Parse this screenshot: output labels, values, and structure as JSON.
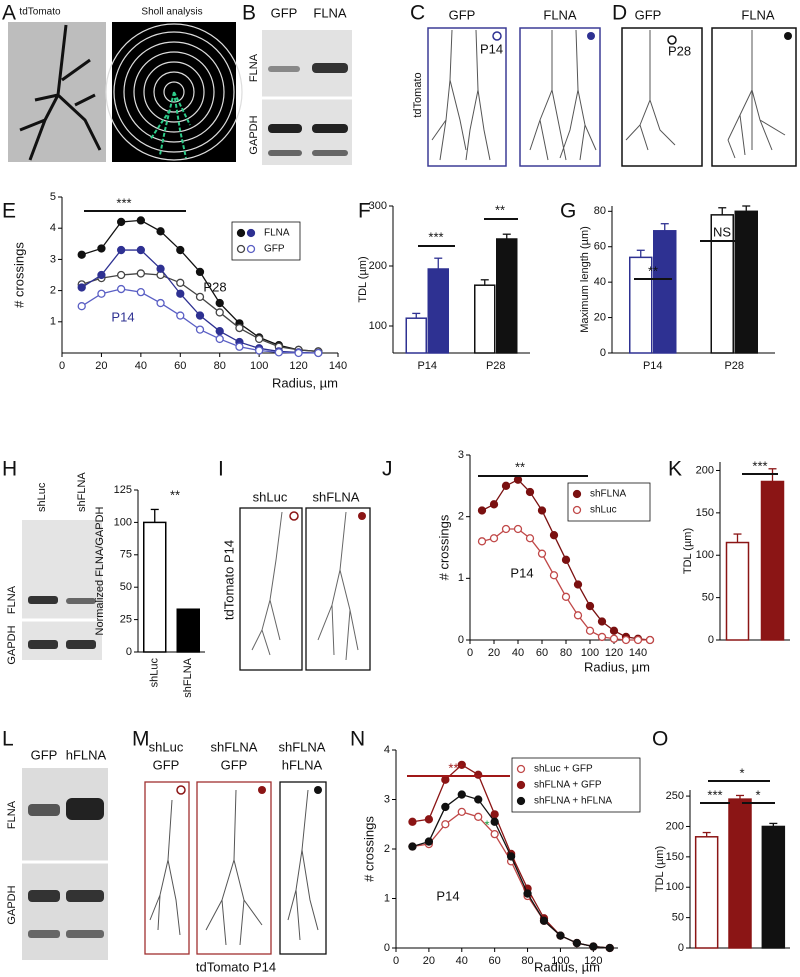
{
  "panels": {
    "A": {
      "label": "A",
      "titles": [
        "tdTomato",
        "Sholl analysis"
      ]
    },
    "B": {
      "label": "B",
      "columns": [
        "GFP",
        "FLNA"
      ],
      "rows": [
        "FLNA",
        "GAPDH"
      ]
    },
    "C": {
      "label": "C",
      "columns": [
        "GFP",
        "FLNA"
      ],
      "age": "P14",
      "side": "tdTomato"
    },
    "D": {
      "label": "D",
      "columns": [
        "GFP",
        "FLNA"
      ],
      "age": "P28"
    },
    "H": {
      "columns": [
        "shLuc",
        "shFLNA"
      ],
      "rows": [
        "FLNA",
        "GAPDH"
      ]
    },
    "I": {
      "label": "I",
      "columns": [
        "shLuc",
        "shFLNA"
      ],
      "side": "tdTomato P14"
    },
    "L": {
      "label": "L",
      "columns": [
        "GFP",
        "hFLNA"
      ],
      "rows": [
        "FLNA",
        "GAPDH"
      ]
    },
    "M": {
      "label": "M",
      "columns": [
        [
          "shLuc",
          "GFP"
        ],
        [
          "shFLNA",
          "GFP"
        ],
        [
          "shFLNA",
          "hFLNA"
        ]
      ],
      "caption": "tdTomato P14"
    }
  },
  "chart_data": [
    {
      "panel": "E",
      "type": "line",
      "xlabel": "Radius, µm",
      "ylabel": "# crossings",
      "x": [
        10,
        20,
        30,
        40,
        50,
        60,
        70,
        80,
        90,
        100,
        110,
        120,
        130
      ],
      "xlim": [
        0,
        140
      ],
      "xticks": [
        0,
        20,
        40,
        60,
        80,
        100,
        120,
        140
      ],
      "ylim": [
        0,
        5
      ],
      "yticks": [
        1,
        2,
        3,
        4,
        5
      ],
      "legend": "upper right",
      "series": [
        {
          "name": "FLNA",
          "color": "#111111",
          "filled": true,
          "values": [
            3.15,
            3.35,
            4.2,
            4.25,
            3.9,
            3.3,
            2.6,
            1.6,
            0.95,
            0.5,
            0.25,
            0.1,
            0.05
          ]
        },
        {
          "name": "GFP",
          "color": "#444444",
          "filled": false,
          "values": [
            2.2,
            2.4,
            2.5,
            2.55,
            2.5,
            2.25,
            1.8,
            1.3,
            0.8,
            0.45,
            0.2,
            0.1,
            0.05
          ]
        },
        {
          "color": "#2e3192",
          "filled": true,
          "values": [
            2.1,
            2.5,
            3.3,
            3.3,
            2.7,
            1.9,
            1.2,
            0.7,
            0.35,
            0.15,
            0.05,
            0.02,
            0
          ]
        },
        {
          "color": "#5a5fc4",
          "filled": false,
          "values": [
            1.5,
            1.9,
            2.05,
            1.95,
            1.6,
            1.2,
            0.75,
            0.45,
            0.2,
            0.08,
            0.02,
            0,
            0
          ]
        }
      ],
      "annotations": [
        "***",
        "P28",
        "P14"
      ]
    },
    {
      "panel": "F",
      "type": "bar",
      "ylabel": "TDL (µm)",
      "categories": [
        "P14",
        "P28"
      ],
      "ylim": [
        55,
        300
      ],
      "yticks": [
        100,
        200,
        300
      ],
      "series": [
        {
          "values": [
            113,
            168
          ],
          "errors": [
            8,
            9
          ],
          "colors": [
            "#2e3192",
            "#111111"
          ],
          "filled": false
        },
        {
          "values": [
            195,
            245
          ],
          "errors": [
            18,
            8
          ],
          "colors": [
            "#2e3192",
            "#111111"
          ],
          "filled": true
        }
      ],
      "annotations": [
        "***",
        "**"
      ]
    },
    {
      "panel": "G",
      "type": "bar",
      "ylabel": "Maximum length (µm)",
      "categories": [
        "P14",
        "P28"
      ],
      "ylim": [
        0,
        83
      ],
      "yticks": [
        0,
        20,
        40,
        60,
        80
      ],
      "series": [
        {
          "values": [
            54,
            78
          ],
          "errors": [
            4,
            4
          ],
          "colors": [
            "#2e3192",
            "#111111"
          ],
          "filled": false
        },
        {
          "values": [
            69,
            80
          ],
          "errors": [
            4,
            3
          ],
          "colors": [
            "#2e3192",
            "#111111"
          ],
          "filled": true
        }
      ],
      "annotations": [
        "**",
        "NS"
      ]
    },
    {
      "panel": "H",
      "type": "bar",
      "ylabel": "Normalized FLNA/GAPDH",
      "categories": [
        "shLuc",
        "shFLNA"
      ],
      "ylim": [
        0,
        125
      ],
      "yticks": [
        0,
        25,
        50,
        75,
        100,
        125
      ],
      "series": [
        {
          "values": [
            100,
            33
          ],
          "errors": [
            10,
            0
          ],
          "color": "#000000",
          "filled": [
            false,
            true
          ]
        }
      ],
      "annotations": [
        "**"
      ]
    },
    {
      "panel": "J",
      "type": "line",
      "xlabel": "Radius, µm",
      "ylabel": "# crossings",
      "x": [
        10,
        20,
        30,
        40,
        50,
        60,
        70,
        80,
        90,
        100,
        110,
        120,
        130,
        140,
        150
      ],
      "xlim": [
        0,
        150
      ],
      "xticks": [
        0,
        20,
        40,
        60,
        80,
        100,
        120,
        140
      ],
      "ylim": [
        0,
        3
      ],
      "yticks": [
        0,
        1,
        2,
        3
      ],
      "legend": "upper right",
      "series": [
        {
          "name": "shFLNA",
          "color": "#7a1010",
          "filled": true,
          "values": [
            2.1,
            2.2,
            2.5,
            2.6,
            2.4,
            2.1,
            1.7,
            1.3,
            0.9,
            0.55,
            0.3,
            0.15,
            0.05,
            0.02,
            0
          ]
        },
        {
          "name": "shLuc",
          "color": "#c04848",
          "filled": false,
          "values": [
            1.6,
            1.65,
            1.8,
            1.8,
            1.65,
            1.4,
            1.05,
            0.7,
            0.4,
            0.15,
            0.05,
            0.02,
            0,
            0,
            0
          ]
        }
      ],
      "annotations": [
        "**",
        "P14"
      ]
    },
    {
      "panel": "K",
      "type": "bar",
      "ylabel": "TDL (µm)",
      "ylim": [
        0,
        210
      ],
      "yticks": [
        0,
        50,
        100,
        150,
        200
      ],
      "series": [
        {
          "values": [
            115,
            187
          ],
          "errors": [
            10,
            15
          ],
          "color": "#8b1515",
          "filled": [
            false,
            true
          ]
        }
      ],
      "annotations": [
        "***"
      ]
    },
    {
      "panel": "N",
      "type": "line",
      "xlabel": "Radius, µm",
      "ylabel": "# crossings",
      "x": [
        10,
        20,
        30,
        40,
        50,
        60,
        70,
        80,
        90,
        100,
        110,
        120,
        130
      ],
      "xlim": [
        0,
        135
      ],
      "xticks": [
        0,
        20,
        40,
        60,
        80,
        100,
        120
      ],
      "ylim": [
        0,
        4
      ],
      "yticks": [
        0,
        1,
        2,
        3,
        4
      ],
      "legend": "upper right",
      "series": [
        {
          "name": "shLuc + GFP",
          "color": "#c04848",
          "filled": false,
          "values": [
            2.05,
            2.1,
            2.5,
            2.75,
            2.65,
            2.3,
            1.75,
            1.05,
            0.55,
            0.25,
            0.1,
            0.03,
            0
          ]
        },
        {
          "name": "shFLNA + GFP",
          "color": "#8b1515",
          "filled": true,
          "values": [
            2.55,
            2.6,
            3.4,
            3.7,
            3.5,
            2.7,
            1.9,
            1.2,
            0.6,
            0.25,
            0.1,
            0.03,
            0
          ]
        },
        {
          "name": "shFLNA + hFLNA",
          "color": "#111111",
          "filled": true,
          "values": [
            2.05,
            2.15,
            2.85,
            3.1,
            3.0,
            2.55,
            1.85,
            1.1,
            0.55,
            0.25,
            0.1,
            0.03,
            0
          ]
        }
      ],
      "annotations": [
        "***",
        "*",
        "P14"
      ]
    },
    {
      "panel": "O",
      "type": "bar",
      "ylabel": "TDL (µm)",
      "ylim": [
        0,
        260
      ],
      "yticks": [
        0,
        50,
        100,
        150,
        200,
        250
      ],
      "series": [
        {
          "values": [
            183,
            245,
            200
          ],
          "errors": [
            7,
            6,
            5
          ],
          "colors": [
            "#8b1515",
            "#8b1515",
            "#111111"
          ],
          "filled": [
            false,
            true,
            true
          ]
        }
      ],
      "annotations": [
        "*",
        "***",
        "*"
      ]
    }
  ]
}
